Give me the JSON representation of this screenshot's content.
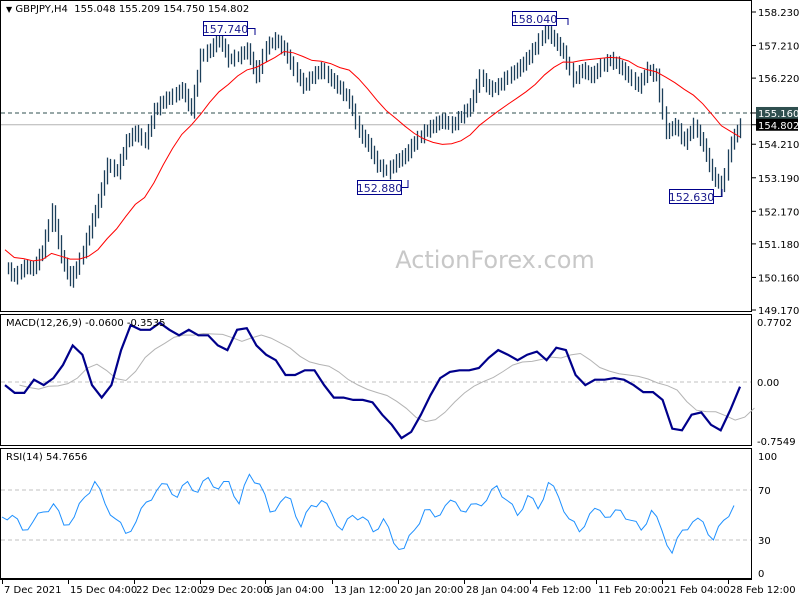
{
  "header": {
    "symbol": "GBPJPY,H4",
    "ohlc": "155.048 155.209 154.750 154.802",
    "collapse_icon": "triangle-down-icon"
  },
  "watermark": "ActionForex.com",
  "colors": {
    "bars": "#1c3f5a",
    "moving_average": "#ff0000",
    "macd": "#00008b",
    "signal": "#b4b4b4",
    "rsi": "#1e90ff",
    "ask_label_bg": "#2f4f4f",
    "bid_label_bg": "#000000",
    "annotation_border": "#00008b"
  },
  "chart_data": [
    {
      "type": "line",
      "panel": "price",
      "name": "GBPJPY,H4",
      "style": "ohlc-bars with moving average",
      "y_ticks": [
        "158.230",
        "157.210",
        "156.220",
        "155.160",
        "154.802",
        "154.210",
        "153.190",
        "152.170",
        "151.180",
        "150.160",
        "149.170"
      ],
      "ylim": [
        149.17,
        158.23
      ],
      "x_ticks": [
        "7 Dec 2021",
        "15 Dec 04:00",
        "22 Dec 12:00",
        "29 Dec 20:00",
        "6 Jan 04:00",
        "13 Jan 12:00",
        "20 Jan 20:00",
        "28 Jan 04:00",
        "4 Feb 12:00",
        "11 Feb 20:00",
        "21 Feb 04:00",
        "28 Feb 12:00"
      ],
      "ask_line": "155.160",
      "bid_line": "154.802",
      "annotations": [
        "157.740",
        "158.040",
        "152.880",
        "152.630"
      ],
      "close": [
        150.5,
        150.2,
        150.5,
        150.45,
        151.0,
        152.2,
        150.8,
        150.1,
        150.7,
        151.6,
        152.5,
        153.6,
        153.4,
        154.3,
        154.6,
        154.3,
        155.25,
        155.55,
        155.7,
        155.9,
        155.25,
        156.9,
        157.1,
        157.5,
        156.8,
        156.9,
        157.1,
        156.3,
        157.2,
        157.4,
        157.1,
        156.5,
        156.0,
        156.3,
        156.5,
        156.2,
        155.9,
        155.55,
        154.6,
        154.2,
        153.6,
        153.4,
        153.7,
        153.9,
        154.3,
        154.6,
        154.8,
        154.95,
        154.8,
        155.1,
        155.4,
        156.3,
        155.9,
        156.0,
        156.3,
        156.5,
        156.8,
        157.2,
        157.7,
        157.4,
        157.0,
        156.2,
        156.5,
        156.3,
        156.6,
        156.8,
        156.6,
        156.3,
        156.0,
        156.5,
        156.3,
        154.6,
        154.8,
        154.3,
        154.8,
        154.2,
        153.3,
        152.9,
        154.3,
        154.8
      ]
    },
    {
      "type": "line",
      "panel": "macd",
      "title": "MACD(12,26,9) -0.0600 -0.3535",
      "y_ticks": [
        "0.7702",
        "0.00",
        "-0.7549"
      ],
      "ylim": [
        -0.7549,
        0.7702
      ],
      "macd": [
        -0.04,
        -0.14,
        -0.14,
        0.03,
        -0.04,
        0.05,
        0.22,
        0.47,
        0.35,
        -0.04,
        -0.2,
        -0.04,
        0.41,
        0.73,
        0.67,
        0.67,
        0.76,
        0.67,
        0.6,
        0.67,
        0.6,
        0.6,
        0.47,
        0.41,
        0.67,
        0.69,
        0.47,
        0.35,
        0.28,
        0.09,
        0.09,
        0.15,
        0.15,
        -0.04,
        -0.2,
        -0.2,
        -0.23,
        -0.23,
        -0.26,
        -0.42,
        -0.55,
        -0.72,
        -0.64,
        -0.42,
        -0.17,
        0.05,
        0.13,
        0.15,
        0.15,
        0.18,
        0.31,
        0.41,
        0.35,
        0.28,
        0.35,
        0.39,
        0.28,
        0.44,
        0.41,
        0.09,
        -0.04,
        0.03,
        0.03,
        0.05,
        0.03,
        -0.04,
        -0.13,
        -0.13,
        -0.23,
        -0.6,
        -0.62,
        -0.42,
        -0.39,
        -0.55,
        -0.62,
        -0.36,
        -0.06
      ]
    },
    {
      "type": "line",
      "panel": "rsi",
      "title": "RSI(14) 54.7656",
      "y_ticks": [
        "100",
        "70",
        "30",
        "0"
      ],
      "ylim": [
        0,
        100
      ],
      "levels": [
        70,
        30
      ],
      "values": [
        48.4,
        49.7,
        37.9,
        44.5,
        52.4,
        59,
        41.9,
        48.4,
        64.2,
        76.8,
        59,
        47,
        35.3,
        44.5,
        60.3,
        69.5,
        74.7,
        64.2,
        76.8,
        68.2,
        80,
        70.8,
        76.8,
        59,
        82.6,
        74.7,
        52.4,
        60.3,
        62.9,
        40.5,
        57.6,
        61.6,
        51,
        37.9,
        49.7,
        48.4,
        36.6,
        47,
        27.4,
        23.4,
        37.9,
        54.2,
        48.4,
        57.6,
        60.3,
        52.4,
        59,
        61.6,
        73.4,
        61.6,
        49.7,
        65.5,
        55,
        76,
        64.2,
        47,
        36.6,
        51,
        53.7,
        48.4,
        53.7,
        45.8,
        37.9,
        53.7,
        37.9,
        19.5,
        37.9,
        44.5,
        44.5,
        30,
        45.8,
        57.6
      ]
    }
  ]
}
